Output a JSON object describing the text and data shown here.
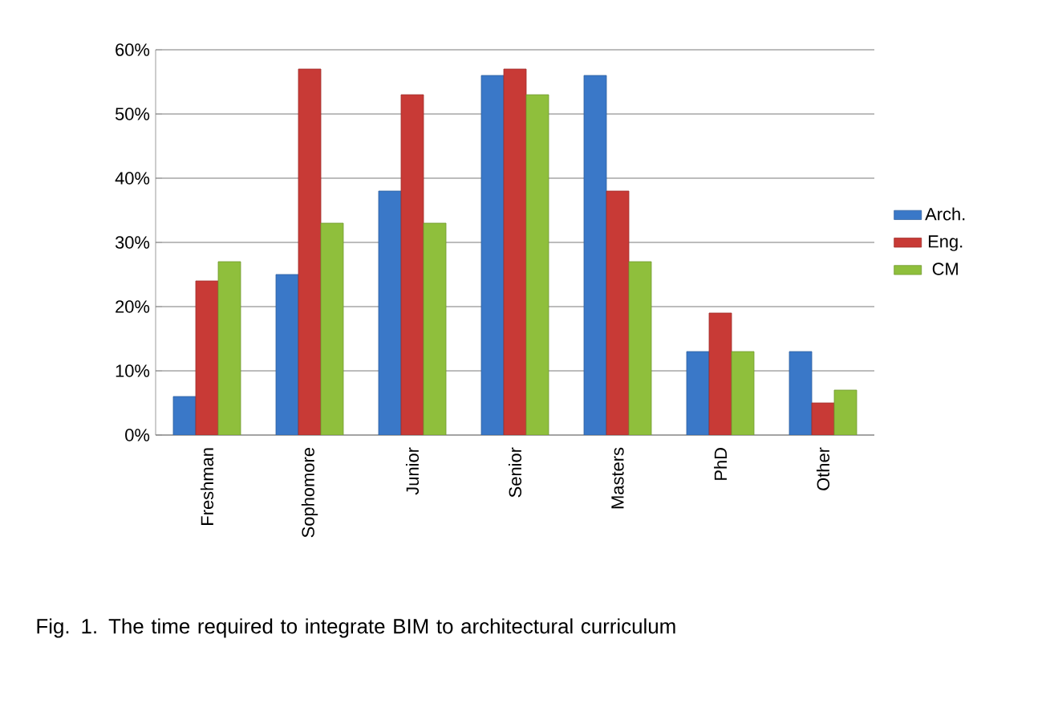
{
  "chart_data": {
    "type": "bar",
    "categories": [
      "Freshman",
      "Sophomore",
      "Junior",
      "Senior",
      "Masters",
      "PhD",
      "Other"
    ],
    "series": [
      {
        "name": "Arch.",
        "color": "#3a78c8",
        "values": [
          6,
          25,
          38,
          56,
          56,
          13,
          13
        ]
      },
      {
        "name": "Eng.",
        "color": "#c83a36",
        "values": [
          24,
          57,
          53,
          57,
          38,
          19,
          5
        ]
      },
      {
        "name": "CM",
        "color": "#8fbf3c",
        "values": [
          27,
          33,
          33,
          53,
          27,
          13,
          7
        ]
      }
    ],
    "ylim": [
      0,
      60
    ],
    "yticks": [
      {
        "value": 0,
        "label": "0%"
      },
      {
        "value": 10,
        "label": "10%"
      },
      {
        "value": 20,
        "label": "20%"
      },
      {
        "value": 30,
        "label": "30%"
      },
      {
        "value": 40,
        "label": "40%"
      },
      {
        "value": 50,
        "label": "50%"
      },
      {
        "value": 60,
        "label": "60%"
      }
    ],
    "grid": "y",
    "legend": "right",
    "annotations": [
      "Fig. 1. The time required to integrate BIM to architectural curriculum"
    ]
  }
}
